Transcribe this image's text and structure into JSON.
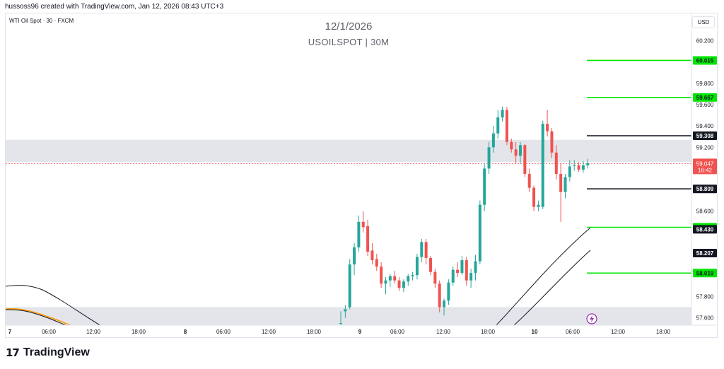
{
  "header": {
    "credit": "hussoss96 created with TradingView.com, Jan 12, 2026 08:43 UTC+3"
  },
  "symbol_label": "WTI Oil Spot · 30 · FXCM",
  "currency_button": "USD",
  "watermark": {
    "date": "12/1/2026",
    "symbol": "USOILSPOT | 30M"
  },
  "footer": {
    "brand": "TradingView"
  },
  "colors": {
    "up": "#26a69a",
    "down": "#ef5350",
    "green_level": "#00e600",
    "zone_fill": "#d1d4dc",
    "price_line": "#ef5350"
  },
  "chart_data": {
    "type": "candlestick",
    "y_axis": {
      "ticks": [
        "60.200",
        "59.800",
        "59.600",
        "59.400",
        "59.200",
        "58.600",
        "57.800",
        "57.600"
      ],
      "range": [
        57.53,
        60.33
      ]
    },
    "x_axis": {
      "labels": [
        "7",
        "06:00",
        "12:00",
        "18:00",
        "8",
        "06:00",
        "12:00",
        "18:00",
        "9",
        "06:00",
        "12:00",
        "18:00",
        "10",
        "06:00",
        "12:00",
        "18:00"
      ]
    },
    "zones": [
      {
        "from": 59.06,
        "to": 59.27
      },
      {
        "from": 57.53,
        "to": 57.7
      }
    ],
    "levels": [
      {
        "label": "60.015",
        "value": 60.015,
        "color": "green"
      },
      {
        "label": "59.667",
        "value": 59.667,
        "color": "green"
      },
      {
        "label": "59.308",
        "value": 59.308,
        "color": "black"
      },
      {
        "label": "58.809",
        "value": 58.809,
        "color": "black"
      },
      {
        "label": "58.449",
        "value": 58.449,
        "color": "green"
      },
      {
        "label": "58.019",
        "value": 58.019,
        "color": "green"
      }
    ],
    "curve_labels": [
      {
        "label": "58.430",
        "value": 58.43
      },
      {
        "label": "58.207",
        "value": 58.207
      }
    ],
    "last_price": {
      "value": "59.047",
      "countdown": "16:42"
    },
    "candles": [
      [
        57.55,
        57.66,
        57.52,
        57.55
      ],
      [
        57.66,
        57.72,
        57.6,
        57.68
      ],
      [
        57.7,
        58.15,
        57.68,
        58.1
      ],
      [
        58.1,
        58.3,
        58.0,
        58.26
      ],
      [
        58.26,
        58.56,
        58.22,
        58.5
      ],
      [
        58.5,
        58.6,
        58.4,
        58.45
      ],
      [
        58.46,
        58.52,
        58.18,
        58.22
      ],
      [
        58.23,
        58.3,
        58.1,
        58.14
      ],
      [
        58.15,
        58.2,
        58.04,
        58.08
      ],
      [
        58.08,
        58.12,
        57.88,
        57.92
      ],
      [
        57.92,
        57.98,
        57.82,
        57.95
      ],
      [
        57.95,
        58.01,
        57.89,
        57.99
      ],
      [
        57.99,
        58.04,
        57.92,
        57.95
      ],
      [
        57.95,
        57.98,
        57.85,
        57.88
      ],
      [
        57.88,
        57.96,
        57.84,
        57.94
      ],
      [
        57.94,
        58.01,
        57.9,
        57.99
      ],
      [
        57.99,
        58.03,
        57.95,
        58.0
      ],
      [
        58.0,
        58.2,
        57.96,
        58.17
      ],
      [
        58.17,
        58.34,
        58.12,
        58.31
      ],
      [
        58.31,
        58.34,
        58.1,
        58.16
      ],
      [
        58.16,
        58.18,
        58.0,
        58.03
      ],
      [
        58.03,
        58.06,
        57.88,
        57.92
      ],
      [
        57.92,
        57.95,
        57.65,
        57.7
      ],
      [
        57.7,
        57.78,
        57.62,
        57.76
      ],
      [
        57.76,
        57.96,
        57.72,
        57.93
      ],
      [
        57.93,
        58.08,
        57.9,
        58.05
      ],
      [
        58.05,
        58.12,
        57.98,
        58.02
      ],
      [
        58.02,
        58.18,
        58.0,
        58.14
      ],
      [
        58.14,
        58.17,
        57.9,
        57.95
      ],
      [
        57.95,
        58.06,
        57.88,
        58.02
      ],
      [
        58.02,
        58.19,
        57.95,
        58.13
      ],
      [
        58.13,
        58.7,
        58.1,
        58.66
      ],
      [
        58.66,
        59.05,
        58.6,
        59.0
      ],
      [
        59.0,
        59.25,
        58.95,
        59.2
      ],
      [
        59.2,
        59.4,
        59.15,
        59.33
      ],
      [
        59.33,
        59.55,
        59.28,
        59.48
      ],
      [
        59.48,
        59.58,
        59.44,
        59.55
      ],
      [
        59.55,
        59.58,
        59.22,
        59.25
      ],
      [
        59.25,
        59.28,
        59.15,
        59.18
      ],
      [
        59.18,
        59.25,
        59.05,
        59.12
      ],
      [
        59.12,
        59.25,
        59.05,
        59.22
      ],
      [
        59.22,
        59.23,
        58.92,
        58.95
      ],
      [
        58.95,
        59.0,
        58.78,
        58.82
      ],
      [
        58.82,
        58.84,
        58.6,
        58.64
      ],
      [
        58.64,
        58.7,
        58.6,
        58.66
      ],
      [
        58.64,
        59.45,
        58.62,
        59.42
      ],
      [
        59.42,
        59.55,
        59.3,
        59.35
      ],
      [
        59.35,
        59.38,
        59.1,
        59.15
      ],
      [
        59.15,
        59.22,
        58.9,
        58.95
      ],
      [
        58.95,
        59.05,
        58.5,
        58.78
      ],
      [
        58.78,
        58.95,
        58.72,
        58.92
      ],
      [
        58.92,
        59.08,
        58.88,
        59.02
      ],
      [
        59.03,
        59.08,
        58.98,
        59.03
      ],
      [
        59.03,
        59.06,
        58.97,
        58.99
      ],
      [
        58.99,
        59.07,
        58.96,
        59.03
      ],
      [
        59.03,
        59.09,
        59.0,
        59.05
      ]
    ]
  }
}
